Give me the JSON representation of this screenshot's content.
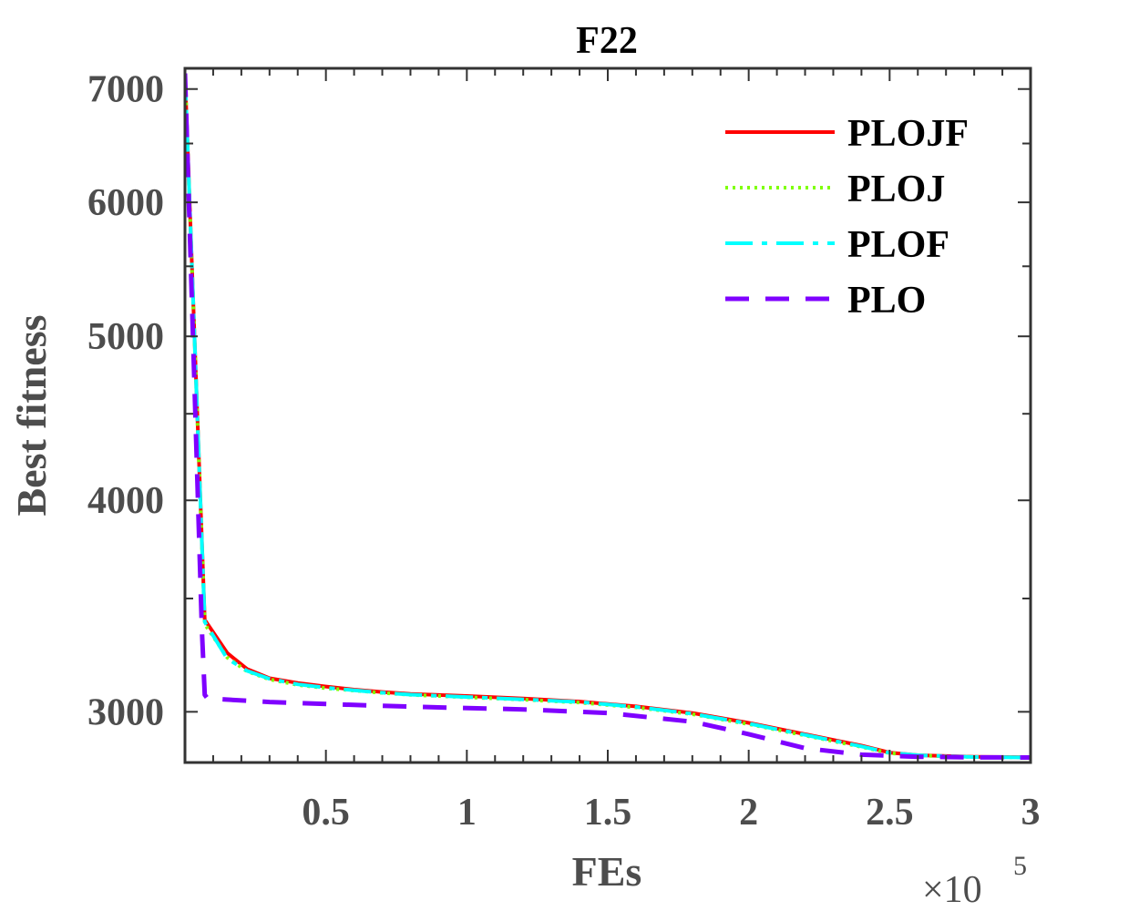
{
  "chart_data": {
    "type": "line",
    "title": "F22",
    "xlabel": "FEs",
    "ylabel": "Best fitness",
    "x_multiplier_base": "×10",
    "x_multiplier_exp": "5",
    "xlim": [
      0,
      3
    ],
    "ylim": [
      2800,
      7200
    ],
    "y_scale": "log",
    "x_ticks": [
      0.5,
      1,
      1.5,
      2,
      2.5,
      3
    ],
    "x_tick_labels": [
      "0.5",
      "1",
      "1.5",
      "2",
      "2.5",
      "3"
    ],
    "y_ticks": [
      3000,
      4000,
      5000,
      6000,
      7000
    ],
    "y_tick_labels": [
      "3000",
      "4000",
      "5000",
      "6000",
      "7000"
    ],
    "legend_position": "top-right",
    "series": [
      {
        "name": "PLOJF",
        "color": "#ff0000",
        "dash": "solid",
        "x": [
          0,
          0.07,
          0.15,
          0.22,
          0.3,
          0.4,
          0.5,
          0.6,
          0.7,
          0.8,
          1.0,
          1.2,
          1.4,
          1.6,
          1.8,
          2.0,
          2.2,
          2.4,
          2.5,
          2.6,
          2.8,
          3.0
        ],
        "y": [
          7150,
          3400,
          3250,
          3180,
          3140,
          3120,
          3105,
          3092,
          3082,
          3074,
          3065,
          3055,
          3042,
          3022,
          2995,
          2955,
          2910,
          2865,
          2838,
          2828,
          2822,
          2820
        ]
      },
      {
        "name": "PLOJ",
        "color": "#7fff00",
        "dash": "dotted",
        "x": [
          0,
          0.07,
          0.15,
          0.22,
          0.3,
          0.4,
          0.5,
          0.6,
          0.7,
          0.8,
          1.0,
          1.2,
          1.4,
          1.6,
          1.8,
          2.0,
          2.2,
          2.4,
          2.5,
          2.6,
          2.8,
          3.0
        ],
        "y": [
          7150,
          3380,
          3230,
          3170,
          3135,
          3112,
          3098,
          3088,
          3078,
          3070,
          3060,
          3050,
          3038,
          3018,
          2990,
          2950,
          2905,
          2860,
          2836,
          2827,
          2821,
          2819
        ]
      },
      {
        "name": "PLOF",
        "color": "#00ffff",
        "dash": "dashdot",
        "x": [
          0,
          0.07,
          0.15,
          0.22,
          0.3,
          0.4,
          0.5,
          0.6,
          0.7,
          0.8,
          1.0,
          1.2,
          1.4,
          1.6,
          1.8,
          2.0,
          2.2,
          2.4,
          2.5,
          2.6,
          2.8,
          3.0
        ],
        "y": [
          7150,
          3390,
          3225,
          3172,
          3138,
          3114,
          3100,
          3089,
          3079,
          3071,
          3061,
          3051,
          3040,
          3020,
          2992,
          2952,
          2907,
          2862,
          2837,
          2828,
          2821,
          2819
        ]
      },
      {
        "name": "PLO",
        "color": "#7f00ff",
        "dash": "dashed",
        "x": [
          0,
          0.06,
          0.07,
          0.08,
          0.3,
          0.6,
          0.9,
          1.2,
          1.5,
          1.8,
          2.0,
          2.2,
          2.4,
          2.6,
          2.8,
          3.0
        ],
        "y": [
          7150,
          3350,
          3070,
          3055,
          3040,
          3028,
          3018,
          3010,
          2995,
          2960,
          2910,
          2855,
          2830,
          2822,
          2820,
          2819
        ]
      }
    ]
  }
}
